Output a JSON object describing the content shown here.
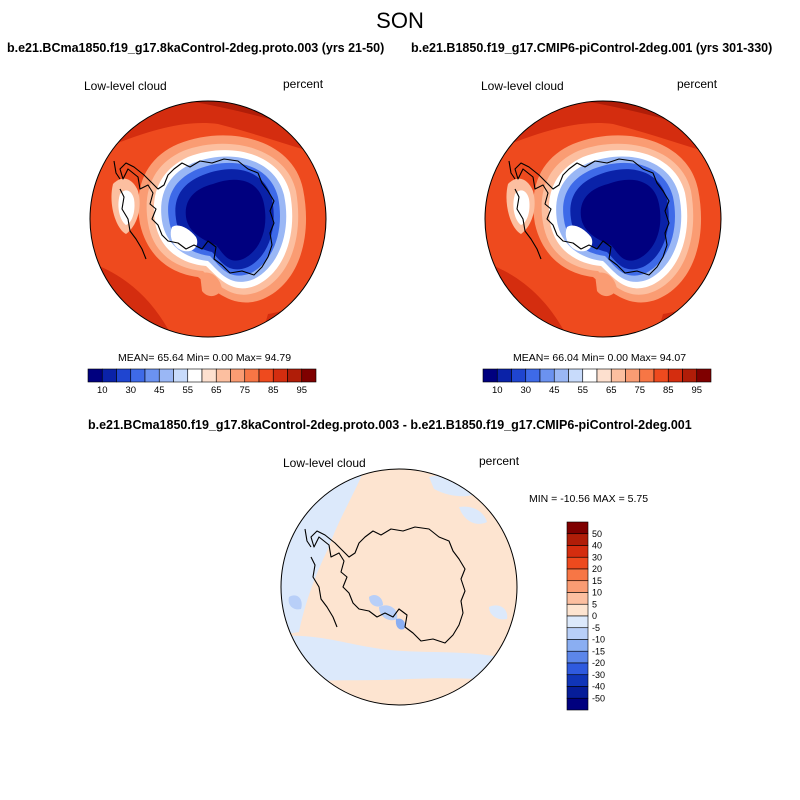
{
  "season": "SON",
  "chart_data": [
    {
      "type": "heatmap",
      "projection": "south-polar-stereographic",
      "title": "b.e21.BCma1850.f19_g17.8kaControl-2deg.proto.003 (yrs 21-50)",
      "variable": "Low-level cloud",
      "units": "percent",
      "stats": {
        "mean": "65.64",
        "min": "0.00",
        "max": "94.79"
      },
      "stats_text": "MEAN=  65.64   Min=    0.00   Max=  94.79",
      "colorbar": {
        "orientation": "horizontal",
        "levels": [
          "10",
          "30",
          "45",
          "55",
          "65",
          "75",
          "85",
          "95"
        ],
        "colors": [
          "#00007f",
          "#0a22a8",
          "#1f45d0",
          "#3e6ae8",
          "#6b92f0",
          "#9ab7f5",
          "#c8dbfb",
          "#ffffff",
          "#fde0cf",
          "#fcbfa0",
          "#fa9c73",
          "#f77645",
          "#ee4a1e",
          "#d42d0f",
          "#b01d08",
          "#7f0000"
        ]
      }
    },
    {
      "type": "heatmap",
      "projection": "south-polar-stereographic",
      "title": "b.e21.B1850.f19_g17.CMIP6-piControl-2deg.001 (yrs 301-330)",
      "variable": "Low-level cloud",
      "units": "percent",
      "stats": {
        "mean": "66.04",
        "min": "0.00",
        "max": "94.07"
      },
      "stats_text": "MEAN=  66.04   Min=    0.00   Max=  94.07",
      "colorbar": {
        "orientation": "horizontal",
        "levels": [
          "10",
          "30",
          "45",
          "55",
          "65",
          "75",
          "85",
          "95"
        ],
        "colors": [
          "#00007f",
          "#0a22a8",
          "#1f45d0",
          "#3e6ae8",
          "#6b92f0",
          "#9ab7f5",
          "#c8dbfb",
          "#ffffff",
          "#fde0cf",
          "#fcbfa0",
          "#fa9c73",
          "#f77645",
          "#ee4a1e",
          "#d42d0f",
          "#b01d08",
          "#7f0000"
        ]
      }
    },
    {
      "type": "heatmap",
      "projection": "south-polar-stereographic",
      "title": "b.e21.BCma1850.f19_g17.8kaControl-2deg.proto.003 - b.e21.B1850.f19_g17.CMIP6-piControl-2deg.001",
      "variable": "Low-level cloud",
      "units": "percent",
      "stats": {
        "min": "-10.56",
        "max": "5.75"
      },
      "stats_text": "MIN = -10.56 MAX =   5.75",
      "colorbar": {
        "orientation": "vertical",
        "levels": [
          "50",
          "40",
          "30",
          "20",
          "15",
          "10",
          "5",
          "0",
          "-5",
          "-10",
          "-15",
          "-20",
          "-30",
          "-40",
          "-50"
        ],
        "colors": [
          "#7f0000",
          "#b01d08",
          "#d42d0f",
          "#ee4a1e",
          "#f77645",
          "#fa9c73",
          "#fcbfa0",
          "#fde4d0",
          "#dce9fb",
          "#b8cff8",
          "#8aaef2",
          "#5c86ea",
          "#2f5ade",
          "#1035b8",
          "#061d99",
          "#00007f"
        ]
      }
    }
  ]
}
